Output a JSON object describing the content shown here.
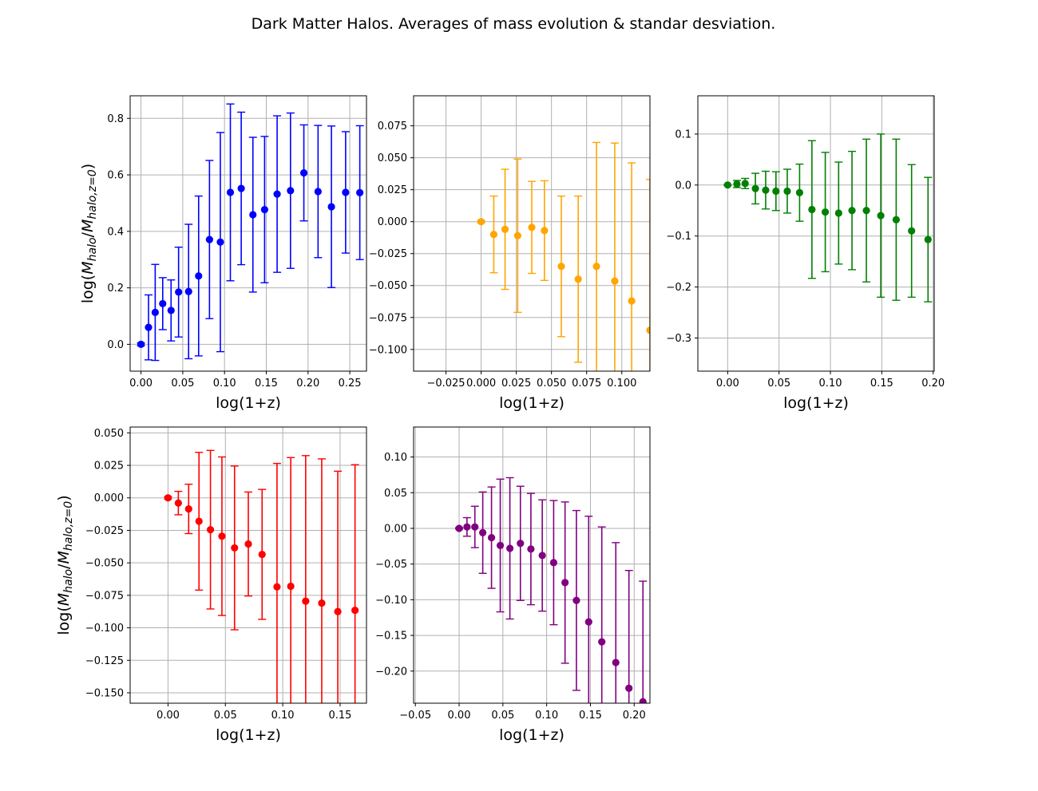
{
  "figure": {
    "title": "Dark Matter Halos. Averages of mass evolution & standar desviation."
  },
  "chart_data": [
    {
      "type": "scatter",
      "panel": "top-left",
      "color": "#0000ff",
      "xlabel": "log(1+z)",
      "ylabel": "log(M_halo/M_halo,z=0)",
      "xlim": [
        -0.013,
        0.27
      ],
      "ylim": [
        -0.095,
        0.88
      ],
      "xticks": [
        0.0,
        0.05,
        0.1,
        0.15,
        0.2,
        0.25
      ],
      "xtick_labels": [
        "0.00",
        "0.05",
        "0.10",
        "0.15",
        "0.20",
        "0.25"
      ],
      "yticks": [
        0.0,
        0.2,
        0.4,
        0.6,
        0.8
      ],
      "ytick_labels": [
        "0.0",
        "0.2",
        "0.4",
        "0.6",
        "0.8"
      ],
      "grid": true,
      "x": [
        0.0,
        0.009,
        0.017,
        0.026,
        0.036,
        0.045,
        0.057,
        0.069,
        0.082,
        0.095,
        0.107,
        0.12,
        0.134,
        0.148,
        0.163,
        0.179,
        0.195,
        0.212,
        0.228,
        0.245,
        0.262
      ],
      "y": [
        0.0,
        0.06,
        0.113,
        0.144,
        0.12,
        0.185,
        0.187,
        0.242,
        0.371,
        0.362,
        0.538,
        0.552,
        0.459,
        0.477,
        0.532,
        0.544,
        0.607,
        0.541,
        0.487,
        0.538,
        0.537
      ],
      "yerr": [
        0.005,
        0.115,
        0.17,
        0.092,
        0.108,
        0.159,
        0.238,
        0.283,
        0.28,
        0.388,
        0.313,
        0.27,
        0.274,
        0.259,
        0.277,
        0.275,
        0.17,
        0.234,
        0.286,
        0.215,
        0.237
      ]
    },
    {
      "type": "scatter",
      "panel": "top-middle",
      "color": "#ffa500",
      "xlabel": "log(1+z)",
      "ylabel": "",
      "xlim": [
        -0.048,
        0.12
      ],
      "ylim": [
        -0.117,
        0.0985
      ],
      "xticks": [
        -0.025,
        0.0,
        0.025,
        0.05,
        0.075,
        0.1
      ],
      "xtick_labels": [
        "−0.025",
        "0.000",
        "0.025",
        "0.050",
        "0.075",
        "0.100"
      ],
      "yticks": [
        -0.1,
        -0.075,
        -0.05,
        -0.025,
        0.0,
        0.025,
        0.05,
        0.075
      ],
      "ytick_labels": [
        "−0.100",
        "−0.075",
        "−0.050",
        "−0.025",
        "0.000",
        "0.025",
        "0.050",
        "0.075"
      ],
      "grid": true,
      "x": [
        0.0,
        0.009,
        0.017,
        0.026,
        0.036,
        0.045,
        0.057,
        0.069,
        0.082,
        0.095,
        0.107,
        0.12
      ],
      "y": [
        0.0,
        -0.01,
        -0.006,
        -0.011,
        -0.0045,
        -0.007,
        -0.035,
        -0.045,
        -0.035,
        -0.0465,
        -0.062,
        -0.085
      ],
      "yerr": [
        0.001,
        0.03,
        0.047,
        0.06,
        0.036,
        0.039,
        0.055,
        0.065,
        0.097,
        0.108,
        0.108,
        0.118
      ]
    },
    {
      "type": "scatter",
      "panel": "top-right",
      "color": "#008000",
      "xlabel": "log(1+z)",
      "ylabel": "",
      "xlim": [
        -0.029,
        0.201
      ],
      "ylim": [
        -0.365,
        0.175
      ],
      "xticks": [
        0.0,
        0.05,
        0.1,
        0.15,
        0.2
      ],
      "xtick_labels": [
        "0.00",
        "0.05",
        "0.10",
        "0.15",
        "0.20"
      ],
      "yticks": [
        -0.3,
        -0.2,
        -0.1,
        0.0,
        0.1
      ],
      "ytick_labels": [
        "−0.3",
        "−0.2",
        "−0.1",
        "0.0",
        "0.1"
      ],
      "grid": true,
      "x": [
        0.0,
        0.009,
        0.017,
        0.027,
        0.037,
        0.047,
        0.058,
        0.07,
        0.082,
        0.095,
        0.108,
        0.121,
        0.135,
        0.149,
        0.164,
        0.179,
        0.195
      ],
      "y": [
        0.0,
        0.002,
        0.003,
        -0.007,
        -0.01,
        -0.012,
        -0.012,
        -0.015,
        -0.048,
        -0.053,
        -0.055,
        -0.05,
        -0.05,
        -0.06,
        -0.068,
        -0.09,
        -0.107
      ],
      "yerr": [
        0.001,
        0.007,
        0.01,
        0.03,
        0.037,
        0.038,
        0.043,
        0.056,
        0.135,
        0.117,
        0.1,
        0.116,
        0.14,
        0.16,
        0.158,
        0.13,
        0.122
      ]
    },
    {
      "type": "scatter",
      "panel": "bottom-left",
      "color": "#ff0000",
      "xlabel": "log(1+z)",
      "ylabel": "log(M_halo/M_halo,z=0)",
      "xlim": [
        -0.033,
        0.173
      ],
      "ylim": [
        -0.158,
        0.0545
      ],
      "xticks": [
        0.0,
        0.05,
        0.1,
        0.15
      ],
      "xtick_labels": [
        "0.00",
        "0.05",
        "0.10",
        "0.15"
      ],
      "yticks": [
        -0.15,
        -0.125,
        -0.1,
        -0.075,
        -0.05,
        -0.025,
        0.0,
        0.025,
        0.05
      ],
      "ytick_labels": [
        "−0.150",
        "−0.125",
        "−0.100",
        "−0.075",
        "−0.050",
        "−0.025",
        "0.000",
        "0.025",
        "0.050"
      ],
      "grid": true,
      "x": [
        0.0,
        0.009,
        0.018,
        0.027,
        0.037,
        0.047,
        0.058,
        0.07,
        0.082,
        0.095,
        0.107,
        0.12,
        0.134,
        0.148,
        0.163
      ],
      "y": [
        0.0,
        -0.004,
        -0.0085,
        -0.018,
        -0.0245,
        -0.0295,
        -0.0385,
        -0.0355,
        -0.0435,
        -0.0685,
        -0.068,
        -0.0795,
        -0.081,
        -0.0875,
        -0.0865
      ],
      "yerr": [
        0.001,
        0.009,
        0.019,
        0.053,
        0.061,
        0.061,
        0.063,
        0.04,
        0.05,
        0.095,
        0.099,
        0.112,
        0.111,
        0.108,
        0.112
      ]
    },
    {
      "type": "scatter",
      "panel": "bottom-middle",
      "color": "#800080",
      "xlabel": "log(1+z)",
      "ylabel": "",
      "xlim": [
        -0.052,
        0.218
      ],
      "ylim": [
        -0.245,
        0.142
      ],
      "xticks": [
        -0.05,
        0.0,
        0.05,
        0.1,
        0.15,
        0.2
      ],
      "xtick_labels": [
        "−0.05",
        "0.00",
        "0.05",
        "0.10",
        "0.15",
        "0.20"
      ],
      "yticks": [
        -0.2,
        -0.15,
        -0.1,
        -0.05,
        0.0,
        0.05,
        0.1
      ],
      "ytick_labels": [
        "−0.20",
        "−0.15",
        "−0.10",
        "−0.05",
        "0.00",
        "0.05",
        "0.10"
      ],
      "grid": true,
      "x": [
        0.0,
        0.009,
        0.018,
        0.027,
        0.037,
        0.047,
        0.058,
        0.07,
        0.082,
        0.095,
        0.108,
        0.121,
        0.134,
        0.148,
        0.163,
        0.179,
        0.194,
        0.21
      ],
      "y": [
        0.0,
        0.002,
        0.002,
        -0.006,
        -0.013,
        -0.024,
        -0.028,
        -0.021,
        -0.029,
        -0.038,
        -0.048,
        -0.076,
        -0.101,
        -0.131,
        -0.159,
        -0.188,
        -0.224,
        -0.243
      ],
      "yerr": [
        0.001,
        0.013,
        0.029,
        0.057,
        0.071,
        0.093,
        0.099,
        0.08,
        0.078,
        0.078,
        0.087,
        0.113,
        0.126,
        0.148,
        0.161,
        0.168,
        0.165,
        0.169
      ]
    }
  ]
}
